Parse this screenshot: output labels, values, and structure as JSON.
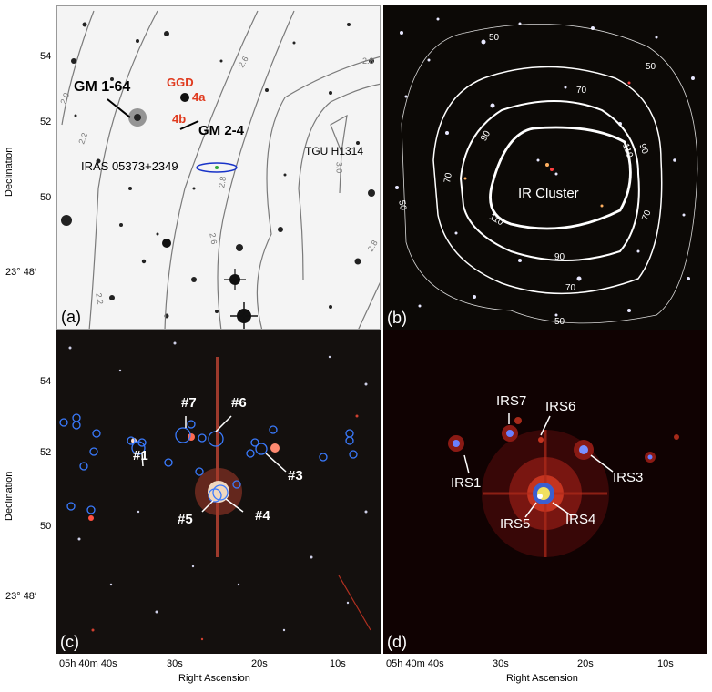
{
  "panels": {
    "a": {
      "letter": "(a)",
      "labels": {
        "gm164": "GM 1-64",
        "ggd": "GGD",
        "g4a": "4a",
        "g4b": "4b",
        "gm24": "GM 2-4",
        "iras": "IRAS 05373+2349",
        "tgu": "TGU H1314"
      },
      "contours": [
        "2.0",
        "2.2",
        "2.6",
        "2.8",
        "2.8",
        "3.0",
        "2.8",
        "2.6",
        "2.2"
      ]
    },
    "b": {
      "letter": "(b)",
      "cluster_label": "IR Cluster",
      "contours": [
        "50",
        "70",
        "90",
        "110",
        "90",
        "70",
        "110",
        "90",
        "70",
        "50",
        "70",
        "50",
        "50"
      ]
    },
    "c": {
      "letter": "(c)",
      "sources": [
        "#7",
        "#6",
        "#1",
        "#3",
        "#5",
        "#4"
      ]
    },
    "d": {
      "letter": "(d)",
      "sources": [
        "IRS7",
        "IRS6",
        "IRS1",
        "IRS3",
        "IRS5",
        "IRS4"
      ]
    }
  },
  "axes": {
    "ylabel": "Declination",
    "xlabel": "Right Ascension",
    "yticks": [
      "54",
      "52",
      "50",
      "23° 48′"
    ],
    "xticks": [
      "05h 40m 40s",
      "30s",
      "20s",
      "10s"
    ]
  },
  "colors": {
    "red_label": "#e03a1e",
    "blue_circle": "#3a7bff",
    "contour_gray": "#7a7a7a"
  }
}
